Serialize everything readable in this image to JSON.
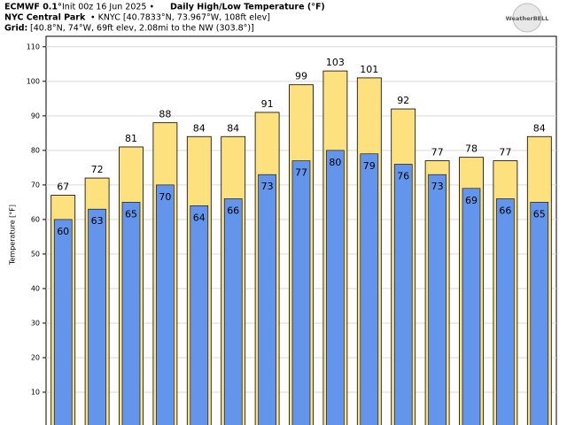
{
  "header": {
    "line1": [
      "ECMWF 0.1°",
      "Init 00z 16 Jun 2025 •",
      "Daily High/Low Temperature (°F)"
    ],
    "line2": [
      "NYC Central Park",
      "• KNYC [40.7833°N, 73.967°W, 108ft elev]"
    ],
    "line3": [
      "Grid:",
      "[40.8°N, 74°W, 69ft elev, 2.08mi to the NW (303.8°)]"
    ],
    "logo": "WeatherBELL"
  },
  "chart_data": {
    "type": "bar",
    "ylabel": "Temperature [°F]",
    "series": [
      {
        "name": "High",
        "color": "#fde17f",
        "values": [
          67,
          72,
          81,
          88,
          84,
          84,
          91,
          99,
          103,
          101,
          92,
          77,
          78,
          77,
          84
        ]
      },
      {
        "name": "Low",
        "color": "#6495ed",
        "values": [
          60,
          63,
          65,
          70,
          64,
          66,
          73,
          77,
          80,
          79,
          76,
          73,
          69,
          66,
          65
        ]
      }
    ],
    "ylim": [
      0,
      112
    ],
    "yticks": [
      10,
      20,
      30,
      40,
      50,
      60,
      70,
      80,
      90,
      100,
      110
    ],
    "grid": true
  }
}
